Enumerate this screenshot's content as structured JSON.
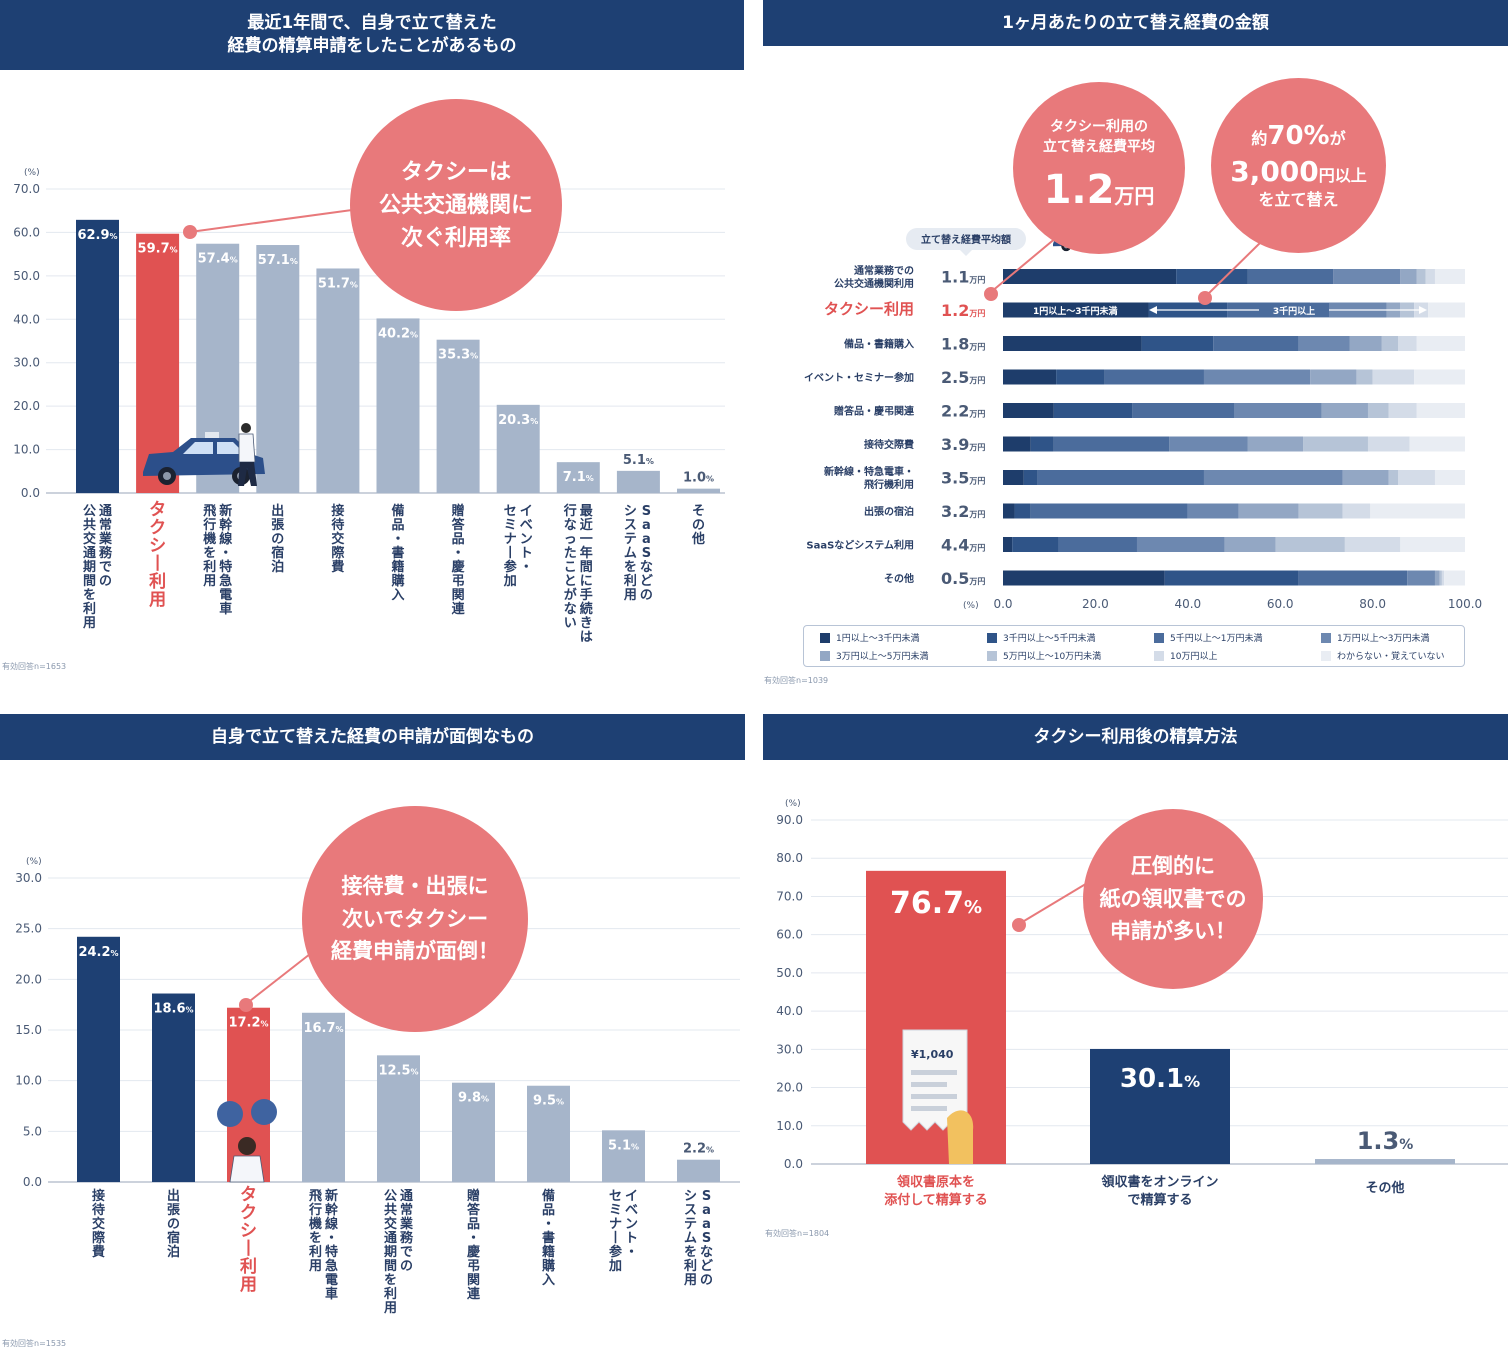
{
  "colors": {
    "navy": "#1e4073",
    "red": "#e05252",
    "gray_bar": "#a6b5ca",
    "bubble": "#e8797b",
    "grid": "#e3e8ef",
    "stack": [
      "#1e3d6b",
      "#2f5488",
      "#4b6c9c",
      "#6d88b0",
      "#93a7c4",
      "#b6c4d7",
      "#d4dce8",
      "#e9edf3"
    ]
  },
  "panel1": {
    "title_line1": "最近1年間で、自身で立て替えた",
    "title_line2": "経費の精算申請をしたことがあるもの",
    "unit": "(%)",
    "bubble_l1": "タクシーは",
    "bubble_l2": "公共交通機関に",
    "bubble_l3": "次ぐ利用率",
    "footnote": "有効回答n=1653"
  },
  "panel2": {
    "title": "1ヶ月あたりの立て替え経費の金額",
    "bubble1_l1": "タクシー利用の",
    "bubble1_l2": "立て替え経費平均",
    "bubble1_big": "1.2",
    "bubble1_unit": "万円",
    "bubble2_pre": "約",
    "bubble2_pct": "70%",
    "bubble2_post": "が",
    "bubble2_amount": "3,000",
    "bubble2_unit": "円以上",
    "bubble2_l3": "を立て替え",
    "avg_tag": "立て替え経費平均額",
    "unit": "(%)",
    "range_left": "1円以上～3千円未満",
    "range_right": "3千円以上",
    "footnote": "有効回答n=1039",
    "legend": [
      "1円以上～3千円未満",
      "3千円以上～5千円未満",
      "5千円以上～1万円未満",
      "1万円以上～3万円未満",
      "3万円以上～5万円未満",
      "5万円以上～10万円未満",
      "10万円以上",
      "わからない・覚えていない"
    ]
  },
  "panel3": {
    "title": "自身で立て替えた経費の申請が面倒なもの",
    "unit": "(%)",
    "bubble_l1": "接待費・出張に",
    "bubble_l2": "次いでタクシー",
    "bubble_l3": "経費申請が面倒！",
    "footnote": "有効回答n=1535"
  },
  "panel4": {
    "title": "タクシー利用後の精算方法",
    "unit": "(%)",
    "bubble_l1": "圧倒的に",
    "bubble_l2": "紙の領収書での",
    "bubble_l3": "申請が多い！",
    "receipt_amount": "¥1,040",
    "footnote": "有効回答n=1804"
  },
  "chart_data": [
    {
      "type": "bar",
      "title": "最近1年間で、自身で立て替えた経費の精算申請をしたことがあるもの",
      "ylabel": "(%)",
      "ylim": [
        0,
        70
      ],
      "yticks": [
        "70.0",
        "60.0",
        "50.0",
        "40.0",
        "30.0",
        "20.0",
        "10.0",
        "0.0"
      ],
      "categories": [
        "通常業務での公共交通期間を利用",
        "タクシー利用",
        "新幹線・特急電車飛行機を利用",
        "出張の宿泊",
        "接待交際費",
        "備品・書籍購入",
        "贈答品・慶弔関連",
        "イベント・セミナー参加",
        "最近一年間に手続きは行なったことがない",
        "SaaSなどのシステムを利用",
        "その他"
      ],
      "values": [
        62.9,
        59.7,
        57.4,
        57.1,
        51.7,
        40.2,
        35.3,
        20.3,
        7.1,
        5.1,
        1.0
      ],
      "labels": [
        "62.9",
        "59.7",
        "57.4",
        "57.1",
        "51.7",
        "40.2",
        "35.3",
        "20.3",
        "7.1",
        "5.1",
        "1.0"
      ],
      "styles": [
        "navy",
        "red",
        "gray",
        "gray",
        "gray",
        "gray",
        "gray",
        "gray",
        "gray",
        "gray",
        "gray"
      ]
    },
    {
      "type": "bar",
      "stacked": true,
      "orientation": "horizontal",
      "title": "1ヶ月あたりの立て替え経費の金額",
      "xlim": [
        0,
        100
      ],
      "xticks": [
        "0.0",
        "20.0",
        "40.0",
        "60.0",
        "80.0",
        "100.0"
      ],
      "categories": [
        "通常業務での公共交通機関利用",
        "タクシー利用",
        "備品・書籍購入",
        "イベント・セミナー参加",
        "贈答品・慶弔関連",
        "接待交際費",
        "新幹線・特急電車・飛行機利用",
        "出張の宿泊",
        "SaaSなどシステム利用",
        "その他"
      ],
      "averages": [
        "1.1",
        "1.2",
        "1.8",
        "2.5",
        "2.2",
        "3.9",
        "3.5",
        "3.2",
        "4.4",
        "0.5"
      ],
      "average_unit": "万円",
      "series": [
        {
          "name": "1円以上～3千円未満",
          "values": [
            37.5,
            31.5,
            30,
            11.5,
            11,
            6,
            4.5,
            2.5,
            2,
            35
          ]
        },
        {
          "name": "3千円以上～5千円未満",
          "values": [
            15.5,
            17,
            15.5,
            10.5,
            17,
            5,
            3,
            3.5,
            10,
            29
          ]
        },
        {
          "name": "5千円以上～1万円未満",
          "values": [
            18.5,
            18,
            18.5,
            21.5,
            22,
            25,
            36,
            34,
            17,
            23.5
          ]
        },
        {
          "name": "1万円以上～3万円未満",
          "values": [
            14.5,
            16.5,
            11,
            23,
            19,
            17,
            30,
            11,
            19,
            6
          ]
        },
        {
          "name": "3万円以上～5万円未満",
          "values": [
            3.5,
            3,
            7,
            10,
            10,
            12,
            10,
            13,
            11,
            1
          ]
        },
        {
          "name": "5万円以上～10万円未満",
          "values": [
            2,
            3,
            3.5,
            3.5,
            4.5,
            14,
            2,
            9.5,
            15,
            0.5
          ]
        },
        {
          "name": "10万円以上",
          "values": [
            2,
            3,
            4,
            9,
            6,
            9,
            8,
            6,
            12,
            0.5
          ]
        },
        {
          "name": "わからない・覚えていない",
          "values": [
            6.5,
            8,
            10.5,
            11,
            10.5,
            12,
            6.5,
            20.5,
            14,
            4.5
          ]
        }
      ]
    },
    {
      "type": "bar",
      "title": "自身で立て替えた経費の申請が面倒なもの",
      "ylabel": "(%)",
      "ylim": [
        0,
        30
      ],
      "yticks": [
        "30.0",
        "25.0",
        "20.0",
        "15.0",
        "10.0",
        "5.0",
        "0.0"
      ],
      "categories": [
        "接待交際費",
        "出張の宿泊",
        "タクシー利用",
        "新幹線・特急電車飛行機を利用",
        "通常業務での公共交通期間を利用",
        "贈答品・慶弔関連",
        "備品・書籍購入",
        "イベント・セミナー参加",
        "SaaSなどのシステムを利用"
      ],
      "values": [
        24.2,
        18.6,
        17.2,
        16.7,
        12.5,
        9.8,
        9.5,
        5.1,
        2.2
      ],
      "labels": [
        "24.2",
        "18.6",
        "17.2",
        "16.7",
        "12.5",
        "9.8",
        "9.5",
        "5.1",
        "2.2"
      ],
      "styles": [
        "navy",
        "navy",
        "red",
        "gray",
        "gray",
        "gray",
        "gray",
        "gray",
        "gray"
      ]
    },
    {
      "type": "bar",
      "title": "タクシー利用後の精算方法",
      "ylabel": "(%)",
      "ylim": [
        0,
        90
      ],
      "yticks": [
        "90.0",
        "80.0",
        "70.0",
        "60.0",
        "50.0",
        "40.0",
        "30.0",
        "20.0",
        "10.0",
        "0.0"
      ],
      "categories": [
        "領収書原本を添付して精算する",
        "領収書をオンラインで精算する",
        "その他"
      ],
      "values": [
        76.7,
        30.1,
        1.3
      ],
      "labels": [
        "76.7",
        "30.1",
        "1.3"
      ],
      "styles": [
        "red",
        "navy",
        "gray"
      ]
    }
  ]
}
